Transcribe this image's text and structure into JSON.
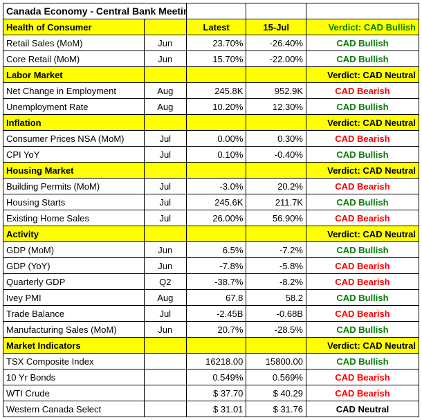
{
  "title": "Canada Economy - Central Bank Meeting",
  "columns": {
    "latest": "Latest",
    "prev": "15-Jul"
  },
  "verdict_prefix": "Verdict: ",
  "colors": {
    "bullish": "#008000",
    "bearish": "#ff0000",
    "neutral": "#000000",
    "section_bg": "#ffff00"
  },
  "sections": [
    {
      "name": "Health of Consumer",
      "verdict": "CAD Bullish",
      "verdict_tone": "bullish",
      "rows": [
        {
          "label": "Retail Sales (MoM)",
          "period": "Jun",
          "latest": "23.70%",
          "prev": "-26.40%",
          "verdict": "CAD Bullish",
          "tone": "bullish"
        },
        {
          "label": "Core Retail (MoM)",
          "period": "Jun",
          "latest": "15.70%",
          "prev": "-22.00%",
          "verdict": "CAD Bullish",
          "tone": "bullish"
        }
      ]
    },
    {
      "name": "Labor Market",
      "verdict": "CAD Neutral",
      "verdict_tone": "neutral",
      "rows": [
        {
          "label": "Net Change in Employment",
          "period": "Aug",
          "latest": "245.8K",
          "prev": "952.9K",
          "verdict": "CAD Bearish",
          "tone": "bearish"
        },
        {
          "label": "Unemployment Rate",
          "period": "Aug",
          "latest": "10.20%",
          "prev": "12.30%",
          "verdict": "CAD Bullish",
          "tone": "bullish"
        }
      ]
    },
    {
      "name": "Inflation",
      "verdict": "CAD Neutral",
      "verdict_tone": "neutral",
      "rows": [
        {
          "label": "Consumer Prices NSA (MoM)",
          "period": "Jul",
          "latest": "0.00%",
          "prev": "0.30%",
          "verdict": "CAD Bearish",
          "tone": "bearish"
        },
        {
          "label": "CPI YoY",
          "period": "Jul",
          "latest": "0.10%",
          "prev": "-0.40%",
          "verdict": "CAD Bullish",
          "tone": "bullish"
        }
      ]
    },
    {
      "name": "Housing Market",
      "verdict": "CAD Neutral",
      "verdict_tone": "neutral",
      "rows": [
        {
          "label": "Building Permits (MoM)",
          "period": "Jul",
          "latest": "-3.0%",
          "prev": "20.2%",
          "verdict": "CAD Bearish",
          "tone": "bearish"
        },
        {
          "label": "Housing Starts",
          "period": "Jul",
          "latest": "245.6K",
          "prev": "211.7K",
          "verdict": "CAD Bullish",
          "tone": "bullish"
        },
        {
          "label": "Existing Home Sales",
          "period": "Jul",
          "latest": "26.00%",
          "prev": "56.90%",
          "verdict": "CAD Bearish",
          "tone": "bearish"
        }
      ]
    },
    {
      "name": "Activity",
      "verdict": "CAD Neutral",
      "verdict_tone": "neutral",
      "rows": [
        {
          "label": "GDP (MoM)",
          "period": "Jun",
          "latest": "6.5%",
          "prev": "-7.2%",
          "verdict": "CAD Bullish",
          "tone": "bullish"
        },
        {
          "label": "GDP (YoY)",
          "period": "Jun",
          "latest": "-7.8%",
          "prev": "-5.8%",
          "verdict": "CAD Bearish",
          "tone": "bearish"
        },
        {
          "label": "Quarterly GDP",
          "period": "Q2",
          "latest": "-38.7%",
          "prev": "-8.2%",
          "verdict": "CAD Bearish",
          "tone": "bearish"
        },
        {
          "label": "Ivey PMI",
          "period": "Aug",
          "latest": "67.8",
          "prev": "58.2",
          "verdict": "CAD Bullish",
          "tone": "bullish"
        },
        {
          "label": "Trade Balance",
          "period": "Jul",
          "latest": "-2.45B",
          "prev": "-0.68B",
          "verdict": "CAD Bearish",
          "tone": "bearish"
        },
        {
          "label": "Manufacturing Sales (MoM)",
          "period": "Jun",
          "latest": "20.7%",
          "prev": "-28.5%",
          "verdict": "CAD Bullish",
          "tone": "bullish"
        }
      ]
    },
    {
      "name": "Market Indicators",
      "verdict": "CAD Neutral",
      "verdict_tone": "neutral",
      "rows": [
        {
          "label": "TSX Composite Index",
          "period": "",
          "latest": "16218.00",
          "prev": "15800.00",
          "verdict": "CAD Bullish",
          "tone": "bullish"
        },
        {
          "label": "10 Yr Bonds",
          "period": "",
          "latest": "0.549%",
          "prev": "0.569%",
          "verdict": "CAD Bearish",
          "tone": "bearish"
        },
        {
          "label": "WTI Crude",
          "period": "",
          "latest": " $    37.70",
          "prev": " $    40.29",
          "verdict": "CAD Bearish",
          "tone": "bearish"
        },
        {
          "label": "Western Canada Select",
          "period": "",
          "latest": " $    31.01",
          "prev": " $    31.76",
          "verdict": "CAD Neutral",
          "tone": "neutral"
        }
      ]
    }
  ]
}
